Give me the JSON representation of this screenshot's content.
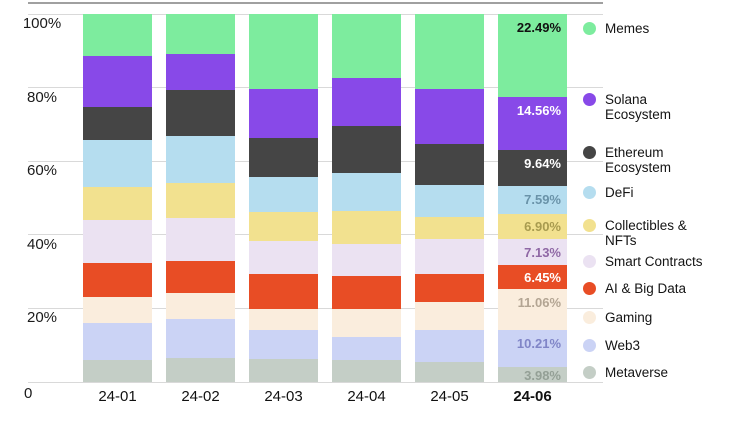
{
  "chart_data": {
    "type": "bar",
    "stacked": true,
    "percent": true,
    "title": "",
    "xlabel": "",
    "ylabel": "",
    "ylim": [
      0,
      100
    ],
    "grid": "horizontal",
    "legend_position": "right",
    "categories": [
      "24-01",
      "24-02",
      "24-03",
      "24-04",
      "24-05",
      "24-06"
    ],
    "highlighted_category": "24-06",
    "value_labels_on_category": "24-06",
    "y_ticks": [
      "100%",
      "80%",
      "60%",
      "40%",
      "20%",
      "0"
    ],
    "y_tick_values": [
      100,
      80,
      60,
      40,
      20,
      0
    ],
    "series": [
      {
        "name": "Memes",
        "legend_label": "Memes",
        "color": "#7DEC9E",
        "label_color": "#111111",
        "values": [
          11.5,
          10.9,
          20.5,
          17.5,
          20.4,
          22.49
        ],
        "last_value_label": "22.49%"
      },
      {
        "name": "Solana Ecosystem",
        "legend_label": "Solana\nEcosystem",
        "color": "#8849E8",
        "label_color": "#FFFFFF",
        "values": [
          13.8,
          9.8,
          13.1,
          12.9,
          14.9,
          14.56
        ],
        "last_value_label": "14.56%"
      },
      {
        "name": "Ethereum Ecosystem",
        "legend_label": "Ethereum\nEcosystem",
        "color": "#454545",
        "label_color": "#FFFFFF",
        "values": [
          9.0,
          12.5,
          10.8,
          12.7,
          11.3,
          9.64
        ],
        "last_value_label": "9.64%"
      },
      {
        "name": "DeFi",
        "legend_label": "DeFi",
        "color": "#B5DDEF",
        "label_color": "#6A93A9",
        "values": [
          12.7,
          12.7,
          9.5,
          10.4,
          8.6,
          7.59
        ],
        "last_value_label": "7.59%"
      },
      {
        "name": "Collectibles & NFTs",
        "legend_label": "Collectibles &\nNFTs",
        "color": "#F2E18F",
        "label_color": "#A89B4F",
        "values": [
          9.0,
          9.5,
          7.7,
          9.0,
          5.9,
          6.9
        ],
        "last_value_label": "6.90%"
      },
      {
        "name": "Smart Contracts",
        "legend_label": "Smart Contracts",
        "color": "#EBE2F2",
        "label_color": "#8F68A5",
        "values": [
          11.7,
          11.8,
          9.0,
          8.6,
          9.5,
          7.13
        ],
        "last_value_label": "7.13%"
      },
      {
        "name": "AI & Big Data",
        "legend_label": "AI & Big Data",
        "color": "#E84D25",
        "label_color": "#FFFFFF",
        "values": [
          9.1,
          8.6,
          9.5,
          9.0,
          7.7,
          6.45
        ],
        "last_value_label": "6.45%"
      },
      {
        "name": "Gaming",
        "legend_label": "Gaming",
        "color": "#FAEDDD",
        "label_color": "#B3A593",
        "values": [
          7.2,
          7.2,
          5.9,
          7.7,
          7.7,
          11.06
        ],
        "last_value_label": "11.06%"
      },
      {
        "name": "Web3",
        "legend_label": "Web3",
        "color": "#CBD3F5",
        "label_color": "#8085C7",
        "values": [
          10.0,
          10.5,
          7.7,
          6.3,
          8.6,
          10.21
        ],
        "last_value_label": "10.21%"
      },
      {
        "name": "Metaverse",
        "legend_label": "Metaverse",
        "color": "#C4CEC6",
        "label_color": "#94A096",
        "values": [
          6.0,
          6.5,
          6.3,
          5.9,
          5.4,
          3.98
        ],
        "last_value_label": "3.98%"
      }
    ],
    "colors": {
      "gridline": "#D9D9D9",
      "plot_top_border": "#A0A0A0",
      "axis_text": "#1A1A1A",
      "background": "#FFFFFF"
    }
  }
}
